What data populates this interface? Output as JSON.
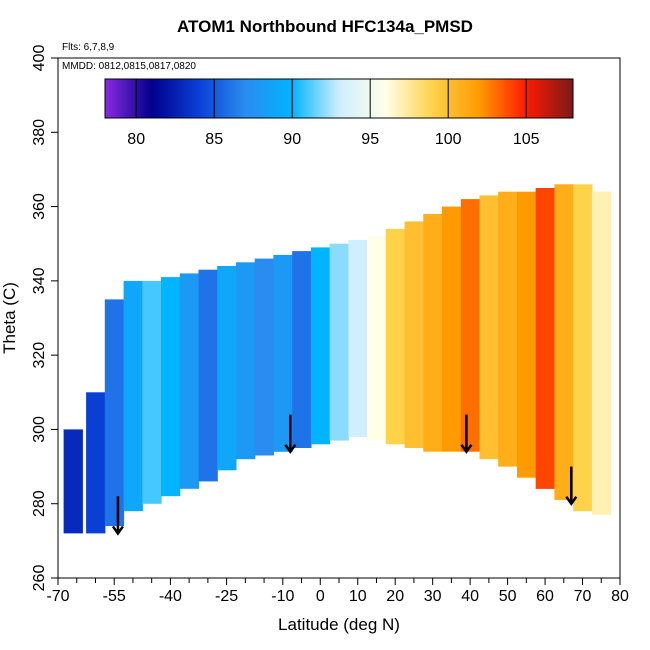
{
  "chart_data": {
    "type": "heatmap",
    "title": "ATOM1 Northbound HFC134a_PMSD",
    "annotations": {
      "flights": "Flts: 6,7,8,9",
      "dates": "MMDD: 0812,0815,0817,0820"
    },
    "xlabel": "Latitude (deg N)",
    "ylabel": "Theta (C)",
    "xlim": [
      -70,
      80
    ],
    "ylim": [
      260,
      400
    ],
    "x_ticks": [
      -70,
      -55,
      -40,
      -25,
      -10,
      0,
      10,
      20,
      30,
      40,
      50,
      60,
      70,
      80
    ],
    "x_minor_ticks": [
      -65,
      -60,
      -50,
      -45,
      -35,
      -30,
      -20,
      -15,
      -5,
      5,
      15,
      25,
      35,
      45,
      55,
      65,
      75
    ],
    "y_ticks": [
      260,
      280,
      300,
      320,
      340,
      360,
      380,
      400
    ],
    "colorbar": {
      "range": [
        78,
        108
      ],
      "ticks": [
        80,
        85,
        90,
        95,
        100,
        105
      ],
      "colors": [
        "#8a2be2",
        "#00008b",
        "#0a3fd6",
        "#2a8cf0",
        "#00b4ff",
        "#cfeeff",
        "#ffffe8",
        "#ffd24a",
        "#ff9a00",
        "#ff1a00",
        "#7a1a1a"
      ],
      "placement": "top"
    },
    "arrows": [
      {
        "lat": -54,
        "theta": 276
      },
      {
        "lat": -8,
        "theta": 298
      },
      {
        "lat": 39,
        "theta": 298
      },
      {
        "lat": 67,
        "theta": 284
      }
    ],
    "grid": false,
    "data_rows": [
      {
        "lat": -66,
        "theta": [
          272,
          300
        ],
        "value": 83
      },
      {
        "lat": -60,
        "theta": [
          272,
          310
        ],
        "value": 84
      },
      {
        "lat": -55,
        "theta": [
          274,
          335
        ],
        "value": 86
      },
      {
        "lat": -50,
        "theta": [
          278,
          340
        ],
        "value": 89
      },
      {
        "lat": -45,
        "theta": [
          280,
          340
        ],
        "value": 91
      },
      {
        "lat": -40,
        "theta": [
          282,
          341
        ],
        "value": 90
      },
      {
        "lat": -35,
        "theta": [
          284,
          342
        ],
        "value": 88
      },
      {
        "lat": -30,
        "theta": [
          286,
          343
        ],
        "value": 86
      },
      {
        "lat": -25,
        "theta": [
          289,
          344
        ],
        "value": 89
      },
      {
        "lat": -20,
        "theta": [
          292,
          345
        ],
        "value": 88
      },
      {
        "lat": -15,
        "theta": [
          293,
          346
        ],
        "value": 87
      },
      {
        "lat": -10,
        "theta": [
          294,
          347
        ],
        "value": 88
      },
      {
        "lat": -5,
        "theta": [
          295,
          348
        ],
        "value": 86
      },
      {
        "lat": 0,
        "theta": [
          296,
          349
        ],
        "value": 90
      },
      {
        "lat": 5,
        "theta": [
          297,
          350
        ],
        "value": 92
      },
      {
        "lat": 10,
        "theta": [
          298,
          351
        ],
        "value": 93
      },
      {
        "lat": 15,
        "theta": [
          297,
          352
        ],
        "value": 96
      },
      {
        "lat": 20,
        "theta": [
          296,
          354
        ],
        "value": 99
      },
      {
        "lat": 25,
        "theta": [
          295,
          356
        ],
        "value": 100
      },
      {
        "lat": 30,
        "theta": [
          294,
          358
        ],
        "value": 101
      },
      {
        "lat": 35,
        "theta": [
          294,
          360
        ],
        "value": 102
      },
      {
        "lat": 40,
        "theta": [
          294,
          362
        ],
        "value": 103
      },
      {
        "lat": 45,
        "theta": [
          292,
          363
        ],
        "value": 100
      },
      {
        "lat": 50,
        "theta": [
          290,
          364
        ],
        "value": 101
      },
      {
        "lat": 55,
        "theta": [
          287,
          364
        ],
        "value": 102
      },
      {
        "lat": 60,
        "theta": [
          284,
          365
        ],
        "value": 104
      },
      {
        "lat": 65,
        "theta": [
          281,
          366
        ],
        "value": 101
      },
      {
        "lat": 70,
        "theta": [
          278,
          366
        ],
        "value": 99
      },
      {
        "lat": 75,
        "theta": [
          277,
          364
        ],
        "value": 97
      }
    ]
  }
}
